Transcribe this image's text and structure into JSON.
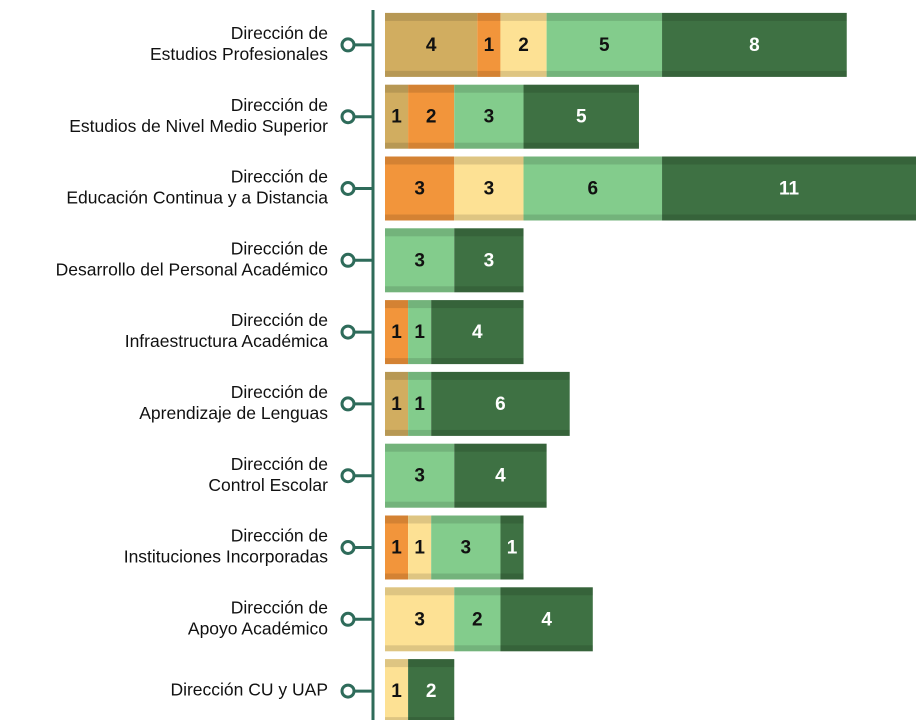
{
  "chart_data": {
    "type": "stacked-bar-horizontal",
    "categories": [
      [
        "Dirección de",
        "Estudios Profesionales"
      ],
      [
        "Dirección de",
        "Estudios de Nivel Medio Superior"
      ],
      [
        "Dirección de",
        "Educación Continua y a Distancia"
      ],
      [
        "Dirección de",
        "Desarrollo del Personal Académico"
      ],
      [
        "Dirección de",
        "Infraestructura Académica"
      ],
      [
        "Dirección de",
        "Aprendizaje de Lenguas"
      ],
      [
        "Dirección de",
        "Control Escolar"
      ],
      [
        "Dirección de",
        "Instituciones Incorporadas"
      ],
      [
        "Dirección de",
        "Apoyo Académico"
      ],
      [
        "Dirección CU y UAP"
      ]
    ],
    "series": [
      {
        "color": "#d1ad60",
        "values": [
          4,
          1,
          null,
          null,
          null,
          1,
          null,
          null,
          null,
          null
        ]
      },
      {
        "color": "#f2953b",
        "values": [
          1,
          2,
          3,
          null,
          1,
          null,
          null,
          1,
          null,
          null
        ]
      },
      {
        "color": "#fde194",
        "values": [
          2,
          null,
          3,
          null,
          null,
          null,
          null,
          1,
          3,
          1
        ]
      },
      {
        "color": "#83cc8c",
        "values": [
          5,
          3,
          6,
          3,
          1,
          1,
          3,
          3,
          2,
          null
        ]
      },
      {
        "color": "#3e7143",
        "values": [
          8,
          5,
          11,
          3,
          4,
          6,
          4,
          1,
          4,
          2
        ]
      }
    ],
    "xlim": [
      0,
      23
    ]
  }
}
